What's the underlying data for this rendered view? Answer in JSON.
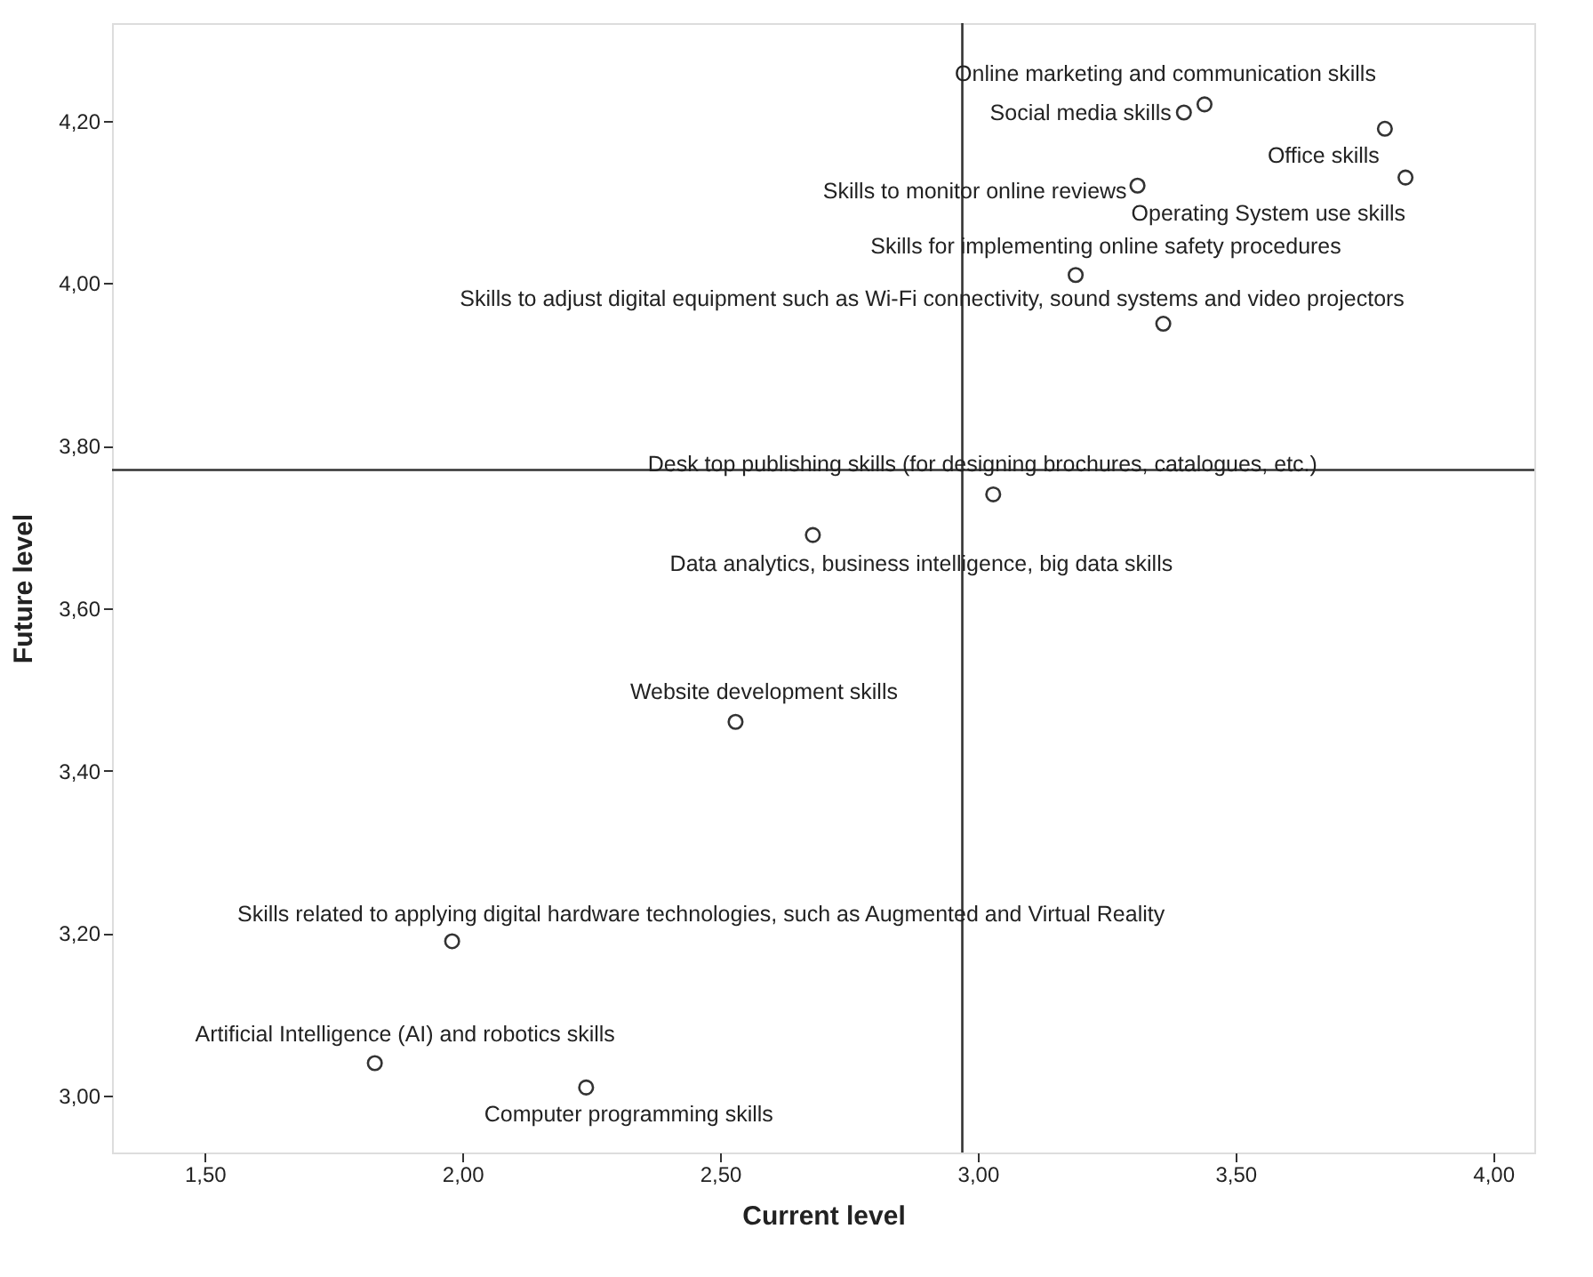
{
  "chart_data": {
    "type": "scatter",
    "xlabel": "Current level",
    "ylabel": "Future level",
    "x": [
      3.44,
      3.4,
      3.79,
      3.31,
      3.83,
      3.19,
      3.36,
      3.03,
      2.68,
      2.53,
      1.98,
      1.83,
      2.24
    ],
    "series": [
      {
        "color": "#333333",
        "values": [
          4.22,
          4.21,
          4.19,
          4.12,
          4.13,
          4.01,
          3.95,
          3.74,
          3.69,
          3.46,
          3.19,
          3.04,
          3.01
        ]
      }
    ],
    "marker": "circle",
    "xlim": [
      1.32,
      4.08
    ],
    "xticks": [
      {
        "value": 1.5,
        "label": "1,50"
      },
      {
        "value": 2.0,
        "label": "2,00"
      },
      {
        "value": 2.5,
        "label": "2,50"
      },
      {
        "value": 3.0,
        "label": "3,00"
      },
      {
        "value": 3.5,
        "label": "3,50"
      },
      {
        "value": 4.0,
        "label": "4,00"
      }
    ],
    "ylim": [
      2.93,
      4.32
    ],
    "yticks": [
      {
        "value": 3.0,
        "label": "3,00"
      },
      {
        "value": 3.2,
        "label": "3,20"
      },
      {
        "value": 3.4,
        "label": "3,40"
      },
      {
        "value": 3.6,
        "label": "3,60"
      },
      {
        "value": 3.8,
        "label": "3,80"
      },
      {
        "value": 4.0,
        "label": "4,00"
      },
      {
        "value": 4.2,
        "label": "4,20"
      }
    ],
    "ref_lines": [
      {
        "axis": "x",
        "value": 2.97,
        "color": "#333333"
      },
      {
        "axis": "y",
        "value": 3.77,
        "color": "#333333"
      }
    ],
    "grid": false,
    "annotations": [
      {
        "text": "Online marketing and communication skills",
        "x": 3.44,
        "y": 4.22
      },
      {
        "text": "Social media skills",
        "x": 3.4,
        "y": 4.21
      },
      {
        "text": "Office skills",
        "x": 3.79,
        "y": 4.19
      },
      {
        "text": "Skills to monitor online reviews",
        "x": 3.31,
        "y": 4.12
      },
      {
        "text": "Operating System use skills",
        "x": 3.83,
        "y": 4.13
      },
      {
        "text": "Skills for implementing online safety procedures",
        "x": 3.19,
        "y": 4.01
      },
      {
        "text": "Skills to adjust digital equipment such as Wi-Fi connectivity, sound systems and video projectors",
        "x": 3.36,
        "y": 3.95
      },
      {
        "text": "Desk top publishing skills (for designing brochures, catalogues, etc.)",
        "x": 3.03,
        "y": 3.74
      },
      {
        "text": "Data analytics, business intelligence, big data skills",
        "x": 2.68,
        "y": 3.69
      },
      {
        "text": "Website development skills",
        "x": 2.53,
        "y": 3.46
      },
      {
        "text": "Skills related to applying digital hardware technologies, such as Augmented and Virtual Reality",
        "x": 1.98,
        "y": 3.19
      },
      {
        "text": "Artificial Intelligence (AI) and robotics skills",
        "x": 1.83,
        "y": 3.04
      },
      {
        "text": "Computer programming skills",
        "x": 2.24,
        "y": 3.01
      }
    ]
  }
}
